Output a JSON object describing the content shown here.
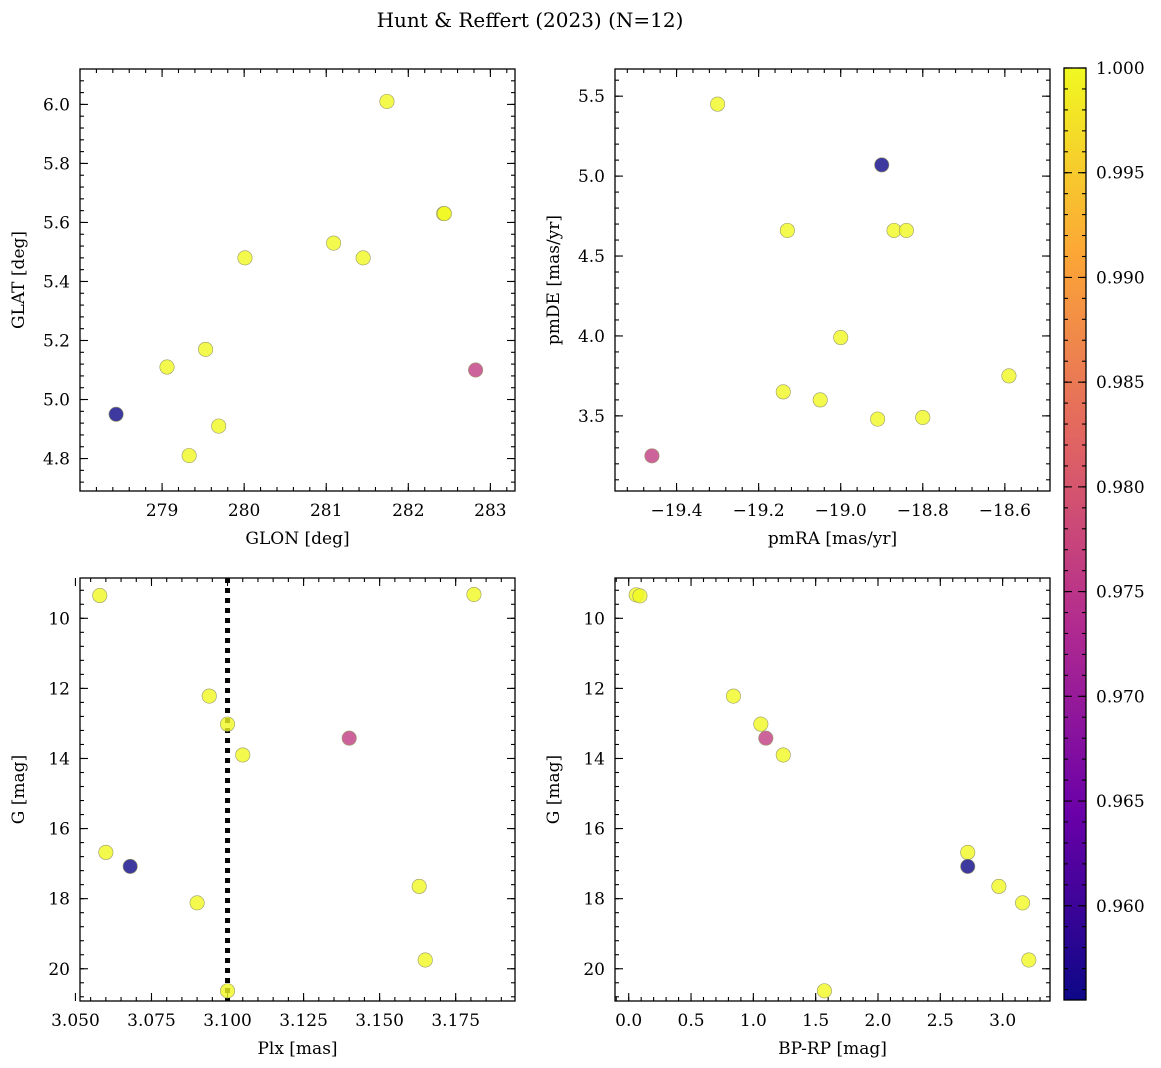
{
  "figure": {
    "title": "Hunt & Reffert (2023) (N=12)"
  },
  "colorbar": {
    "min": 0.9555,
    "max": 1.0,
    "ticks": [
      0.96,
      0.965,
      0.97,
      0.975,
      0.98,
      0.985,
      0.99,
      0.995,
      1.0
    ],
    "tick_labels": [
      "0.960",
      "0.965",
      "0.970",
      "0.975",
      "0.980",
      "0.985",
      "0.990",
      "0.995",
      "1.000"
    ],
    "colormap": [
      "#0d0887",
      "#6a00a8",
      "#b12a90",
      "#e16462",
      "#fca636",
      "#f0f921"
    ]
  },
  "chart_data": [
    {
      "type": "scatter",
      "id": "glon-glat",
      "xlabel": "GLON [deg]",
      "ylabel": "GLAT [deg]",
      "xlim": [
        278.0,
        283.3
      ],
      "ylim": [
        4.69,
        6.12
      ],
      "x_inverted": false,
      "y_inverted": false,
      "xticks": [
        279,
        280,
        281,
        282,
        283
      ],
      "xtick_labels": [
        "279",
        "280",
        "281",
        "282",
        "283"
      ],
      "yticks": [
        4.8,
        5.0,
        5.2,
        5.4,
        5.6,
        5.8,
        6.0
      ],
      "ytick_labels": [
        "4.8",
        "5.0",
        "5.2",
        "5.4",
        "5.6",
        "5.8",
        "6.0"
      ],
      "x": [
        278.44,
        279.06,
        279.33,
        279.53,
        279.69,
        280.01,
        281.09,
        281.45,
        281.74,
        282.43,
        282.44,
        282.82
      ],
      "y": [
        4.95,
        5.11,
        4.81,
        5.17,
        4.91,
        5.48,
        5.53,
        5.48,
        6.01,
        5.63,
        5.63,
        5.1
      ],
      "color_values": [
        0.9555,
        1.0,
        1.0,
        1.0,
        1.0,
        1.0,
        1.0,
        1.0,
        1.0,
        1.0,
        1.0,
        0.976
      ]
    },
    {
      "type": "scatter",
      "id": "pmra-pmde",
      "xlabel": "pmRA [mas/yr]",
      "ylabel": "pmDE [mas/yr]",
      "xlim": [
        -19.55,
        -18.49
      ],
      "ylim": [
        3.03,
        5.67
      ],
      "x_inverted": false,
      "y_inverted": false,
      "xticks": [
        -19.4,
        -19.2,
        -19.0,
        -18.8,
        -18.6
      ],
      "xtick_labels": [
        "−19.4",
        "−19.2",
        "−19.0",
        "−18.8",
        "−18.6"
      ],
      "yticks": [
        3.5,
        4.0,
        4.5,
        5.0,
        5.5
      ],
      "ytick_labels": [
        "3.5",
        "4.0",
        "4.5",
        "5.0",
        "5.5"
      ],
      "x": [
        -19.46,
        -19.3,
        -19.14,
        -19.13,
        -19.05,
        -19.0,
        -18.91,
        -18.9,
        -18.87,
        -18.84,
        -18.8,
        -18.59
      ],
      "y": [
        3.25,
        5.45,
        3.65,
        4.66,
        3.6,
        3.99,
        3.48,
        5.07,
        4.66,
        4.66,
        3.49,
        3.75
      ],
      "color_values": [
        0.976,
        1.0,
        1.0,
        1.0,
        1.0,
        1.0,
        1.0,
        0.9555,
        1.0,
        1.0,
        1.0,
        1.0
      ]
    },
    {
      "type": "scatter",
      "id": "plx-g",
      "xlabel": "Plx [mas]",
      "ylabel": "G [mag]",
      "xlim": [
        3.0515,
        3.1945
      ],
      "ylim": [
        8.85,
        20.92
      ],
      "x_inverted": false,
      "y_inverted": true,
      "xticks": [
        3.05,
        3.075,
        3.1,
        3.125,
        3.15,
        3.175
      ],
      "xtick_labels": [
        "3.050",
        "3.075",
        "3.100",
        "3.125",
        "3.150",
        "3.175"
      ],
      "yticks": [
        10,
        12,
        14,
        16,
        18,
        20
      ],
      "ytick_labels": [
        "10",
        "12",
        "14",
        "16",
        "18",
        "20"
      ],
      "vline": 3.1,
      "x": [
        3.058,
        3.06,
        3.068,
        3.09,
        3.094,
        3.1,
        3.1,
        3.105,
        3.14,
        3.163,
        3.165,
        3.181
      ],
      "y": [
        9.35,
        16.68,
        17.08,
        18.12,
        12.22,
        13.02,
        20.63,
        13.9,
        13.42,
        17.65,
        19.75,
        9.32
      ],
      "color_values": [
        1.0,
        1.0,
        0.9555,
        1.0,
        1.0,
        1.0,
        1.0,
        1.0,
        0.976,
        1.0,
        1.0,
        1.0
      ]
    },
    {
      "type": "scatter",
      "id": "bprp-g",
      "xlabel": "BP-RP [mag]",
      "ylabel": "G [mag]",
      "xlim": [
        -0.11,
        3.38
      ],
      "ylim": [
        8.85,
        20.92
      ],
      "x_inverted": false,
      "y_inverted": true,
      "xticks": [
        0.0,
        0.5,
        1.0,
        1.5,
        2.0,
        2.5,
        3.0
      ],
      "xtick_labels": [
        "0.0",
        "0.5",
        "1.0",
        "1.5",
        "2.0",
        "2.5",
        "3.0"
      ],
      "yticks": [
        10,
        12,
        14,
        16,
        18,
        20
      ],
      "ytick_labels": [
        "10",
        "12",
        "14",
        "16",
        "18",
        "20"
      ],
      "x": [
        0.06,
        0.09,
        0.84,
        1.06,
        1.1,
        1.24,
        1.57,
        2.72,
        2.72,
        2.97,
        3.16,
        3.21
      ],
      "y": [
        9.33,
        9.36,
        12.22,
        13.02,
        13.42,
        13.9,
        20.63,
        16.68,
        17.08,
        17.65,
        18.12,
        19.75
      ],
      "color_values": [
        1.0,
        1.0,
        1.0,
        1.0,
        0.976,
        1.0,
        1.0,
        1.0,
        0.9555,
        1.0,
        1.0,
        1.0
      ]
    }
  ]
}
